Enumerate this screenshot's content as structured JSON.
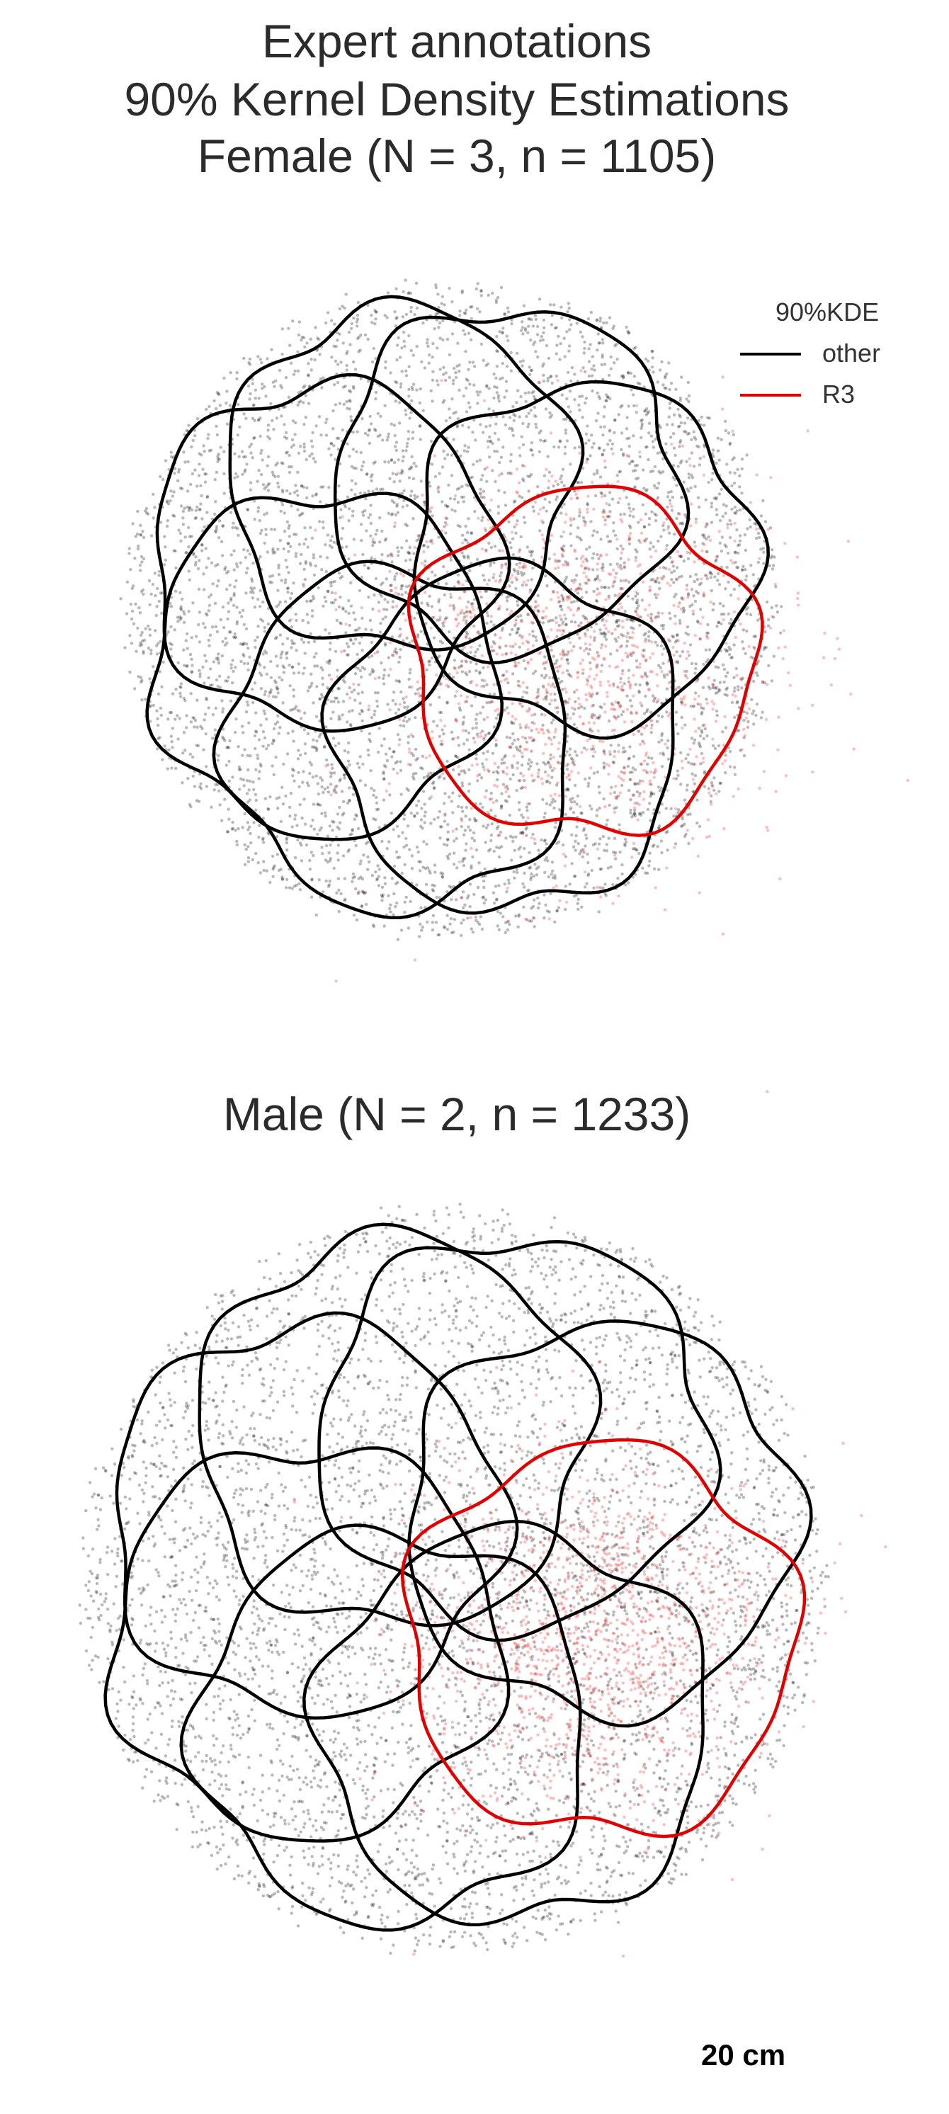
{
  "titles": {
    "line1": "Expert annotations",
    "line2": "90% Kernel Density Estimations",
    "line3": "Female (N = 3, n = 1105)",
    "male": "Male (N = 2, n = 1233)"
  },
  "legend": {
    "title": "90%KDE",
    "items": [
      {
        "label": "other",
        "color": "#000000"
      },
      {
        "label": "R3",
        "color": "#e00000"
      }
    ]
  },
  "scale_label": "20 cm",
  "chart_data": [
    {
      "type": "scatter",
      "title": "Female (N = 3, n = 1105)",
      "series": [
        {
          "name": "other",
          "color": "#000000",
          "kde_contours": 8
        },
        {
          "name": "R3",
          "color": "#e00000",
          "kde_contours": 1
        }
      ],
      "n": 1105,
      "N": 3
    },
    {
      "type": "scatter",
      "title": "Male (N = 2, n = 1233)",
      "series": [
        {
          "name": "other",
          "color": "#000000",
          "kde_contours": 8
        },
        {
          "name": "R3",
          "color": "#e00000",
          "kde_contours": 1
        }
      ],
      "n": 1233,
      "N": 2
    }
  ]
}
